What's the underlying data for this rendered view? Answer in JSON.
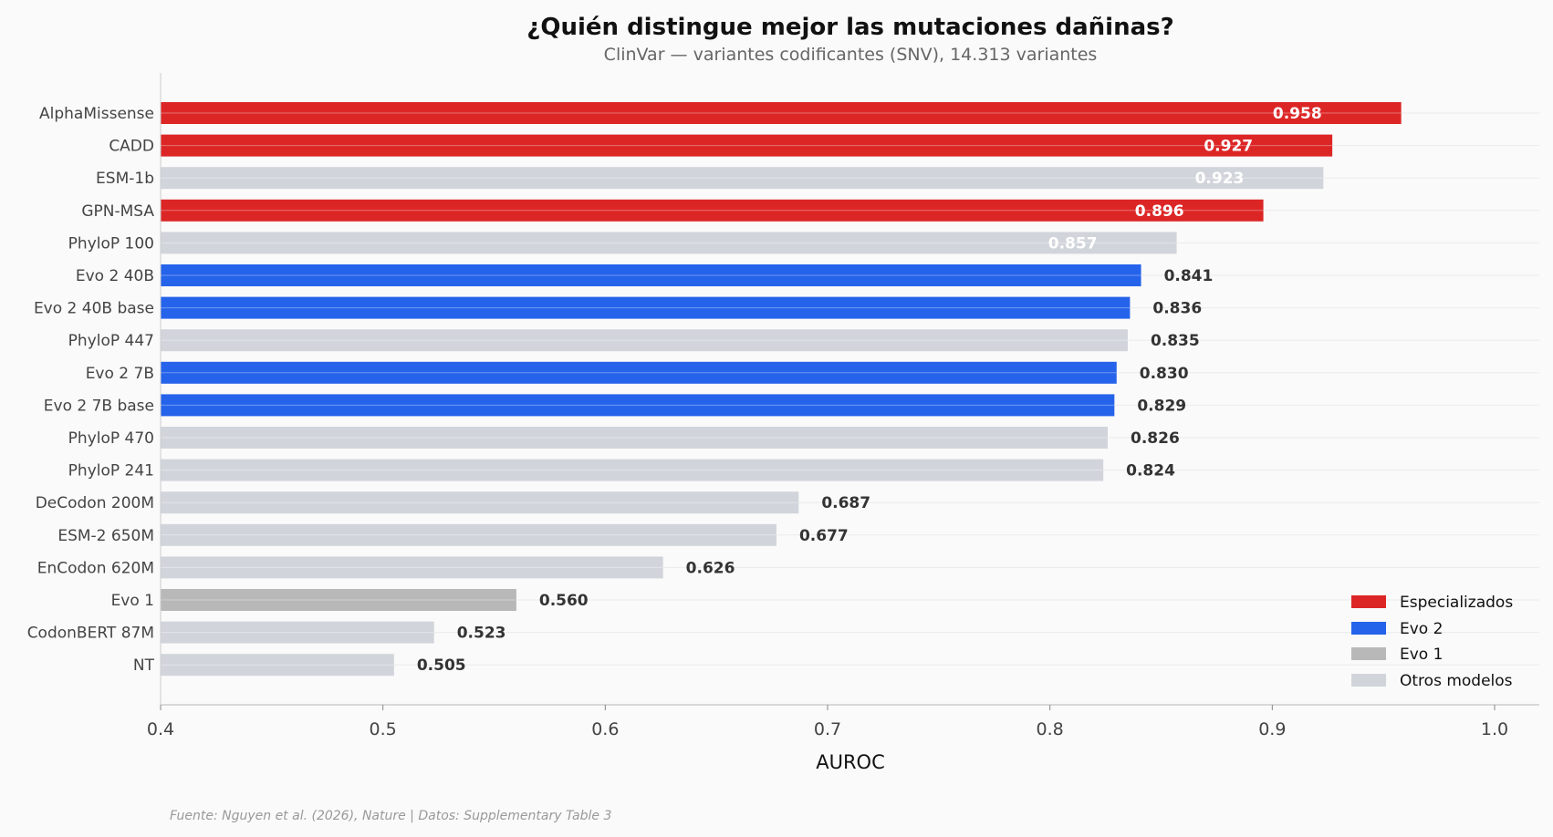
{
  "chart_data": {
    "type": "bar",
    "orientation": "horizontal",
    "title": "¿Quién distingue mejor las mutaciones dañinas?",
    "subtitle": "ClinVar — variantes codificantes (SNV), 14.313 variantes",
    "xlabel": "AUROC",
    "ylabel": "",
    "xlim": [
      0.4,
      1.02
    ],
    "xticks": [
      "0.4",
      "0.5",
      "0.6",
      "0.7",
      "0.8",
      "0.9",
      "1.0"
    ],
    "grid": "horizontal",
    "legend_position": "bottom-right",
    "footer": "Fuente: Nguyen et al. (2026), Nature | Datos: Supplementary Table 3",
    "groups": [
      {
        "key": "esp",
        "name": "Especializados",
        "color": "#dc2626"
      },
      {
        "key": "evo2",
        "name": "Evo 2",
        "color": "#2563eb"
      },
      {
        "key": "evo1",
        "name": "Evo 1",
        "color": "#b8b8b8"
      },
      {
        "key": "otros",
        "name": "Otros modelos",
        "color": "#d1d5db"
      }
    ],
    "bars": [
      {
        "label": "AlphaMissense",
        "value": 0.958,
        "text": "0.958",
        "group": "esp"
      },
      {
        "label": "CADD",
        "value": 0.927,
        "text": "0.927",
        "group": "esp"
      },
      {
        "label": "ESM-1b",
        "value": 0.923,
        "text": "0.923",
        "group": "otros"
      },
      {
        "label": "GPN-MSA",
        "value": 0.896,
        "text": "0.896",
        "group": "esp"
      },
      {
        "label": "PhyloP 100",
        "value": 0.857,
        "text": "0.857",
        "group": "otros"
      },
      {
        "label": "Evo 2 40B",
        "value": 0.841,
        "text": "0.841",
        "group": "evo2"
      },
      {
        "label": "Evo 2 40B base",
        "value": 0.836,
        "text": "0.836",
        "group": "evo2"
      },
      {
        "label": "PhyloP 447",
        "value": 0.835,
        "text": "0.835",
        "group": "otros"
      },
      {
        "label": "Evo 2 7B",
        "value": 0.83,
        "text": "0.830",
        "group": "evo2"
      },
      {
        "label": "Evo 2 7B base",
        "value": 0.829,
        "text": "0.829",
        "group": "evo2"
      },
      {
        "label": "PhyloP 470",
        "value": 0.826,
        "text": "0.826",
        "group": "otros"
      },
      {
        "label": "PhyloP 241",
        "value": 0.824,
        "text": "0.824",
        "group": "otros"
      },
      {
        "label": "DeCodon 200M",
        "value": 0.687,
        "text": "0.687",
        "group": "otros"
      },
      {
        "label": "ESM-2 650M",
        "value": 0.677,
        "text": "0.677",
        "group": "otros"
      },
      {
        "label": "EnCodon 620M",
        "value": 0.626,
        "text": "0.626",
        "group": "otros"
      },
      {
        "label": "Evo 1",
        "value": 0.56,
        "text": "0.560",
        "group": "evo1"
      },
      {
        "label": "CodonBERT 87M",
        "value": 0.523,
        "text": "0.523",
        "group": "otros"
      },
      {
        "label": "NT",
        "value": 0.505,
        "text": "0.505",
        "group": "otros"
      }
    ]
  }
}
